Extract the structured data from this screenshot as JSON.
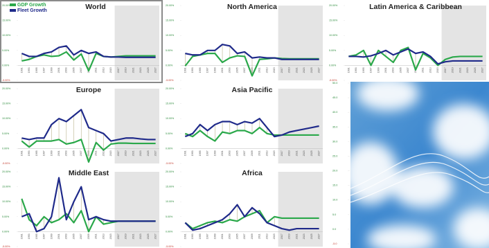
{
  "chart_data": [
    {
      "type": "line",
      "title": "World",
      "legend": "upper left",
      "xlim": [
        1990,
        2028
      ],
      "forecast_start": 2016,
      "shade_color": "#e4e4e4",
      "x": [
        1991,
        1993,
        1995,
        1997,
        1999,
        2001,
        2003,
        2005,
        2007,
        2009,
        2011,
        2013,
        2015,
        2017,
        2019,
        2021,
        2023,
        2025,
        2027
      ],
      "ylim": [
        -5,
        20
      ],
      "yticks": [
        {
          "value": 20,
          "label": "20.00%"
        },
        {
          "value": 15,
          "label": "15.00%"
        },
        {
          "value": 10,
          "label": "10.00%"
        },
        {
          "value": 5,
          "label": "5.00%"
        },
        {
          "value": 0,
          "label": "0.00%"
        },
        {
          "value": -5,
          "label": "-5.00%"
        }
      ],
      "series": [
        {
          "name": "GDP Growth",
          "color": "#2aa84a",
          "values": [
            1.5,
            2,
            3,
            3.5,
            3,
            3.2,
            4.5,
            1.8,
            3.8,
            -1.8,
            4,
            3,
            2.8,
            3,
            3.2,
            3.2,
            3.2,
            3.2,
            3.2
          ]
        },
        {
          "name": "Fleet Growth",
          "color": "#1f2a8a",
          "values": [
            4,
            3,
            3,
            4,
            4.5,
            6,
            6.5,
            3.5,
            5,
            4,
            4.5,
            3,
            2.8,
            2.8,
            2.7,
            2.7,
            2.7,
            2.7,
            2.7
          ]
        }
      ]
    },
    {
      "type": "line",
      "title": "North America",
      "xlim": [
        1990,
        2028
      ],
      "forecast_start": 2016,
      "shade_color": "#e4e4e4",
      "x": [
        1991,
        1993,
        1995,
        1997,
        1999,
        2001,
        2003,
        2005,
        2007,
        2009,
        2011,
        2013,
        2015,
        2017,
        2019,
        2021,
        2023,
        2025,
        2027
      ],
      "ylim": [
        -5,
        20
      ],
      "yticks": [
        {
          "value": 20,
          "label": "20.00%"
        },
        {
          "value": 15,
          "label": "15.00%"
        },
        {
          "value": 10,
          "label": "10.00%"
        },
        {
          "value": 5,
          "label": "5.00%"
        },
        {
          "value": 0,
          "label": "0.00%"
        },
        {
          "value": -5,
          "label": "-5.00%"
        }
      ],
      "series": [
        {
          "color": "#2aa84a",
          "values": [
            -0.2,
            3,
            3.5,
            4,
            4,
            1,
            2.5,
            3.2,
            3,
            -3.5,
            2,
            2.2,
            2.5,
            2.3,
            2.2,
            2.2,
            2.2,
            2.2,
            2.2
          ]
        },
        {
          "color": "#1f2a8a",
          "values": [
            4,
            3.5,
            3.5,
            5,
            5,
            7,
            6.5,
            4,
            4.5,
            2.5,
            2.8,
            2.5,
            2.5,
            2,
            2,
            2,
            2,
            2,
            2
          ]
        }
      ]
    },
    {
      "type": "line",
      "title": "Latin America & Caribbean",
      "xlim": [
        1990,
        2028
      ],
      "forecast_start": 2016,
      "shade_color": "#e4e4e4",
      "x": [
        1991,
        1993,
        1995,
        1997,
        1999,
        2001,
        2003,
        2005,
        2007,
        2009,
        2011,
        2013,
        2015,
        2017,
        2019,
        2021,
        2023,
        2025,
        2027
      ],
      "ylim": [
        -5,
        20
      ],
      "yticks": [
        {
          "value": 20,
          "label": "20.00%"
        },
        {
          "value": 15,
          "label": "15.00%"
        },
        {
          "value": 10,
          "label": "10.00%"
        },
        {
          "value": 5,
          "label": "5.00%"
        },
        {
          "value": 0,
          "label": "0.00%"
        },
        {
          "value": -5,
          "label": "-5.00%"
        }
      ],
      "series": [
        {
          "color": "#2aa84a",
          "values": [
            3,
            3.5,
            5,
            0,
            5,
            3,
            1,
            5,
            6,
            -1.5,
            4,
            2.5,
            0,
            2,
            2.8,
            3,
            3,
            3,
            3
          ]
        },
        {
          "color": "#1f2a8a",
          "values": [
            3,
            3,
            2.8,
            3.2,
            4,
            5,
            3.5,
            4.5,
            5.5,
            4,
            4.5,
            3,
            0.5,
            1.2,
            1.5,
            1.5,
            1.5,
            1.5,
            1.5
          ]
        }
      ]
    },
    {
      "type": "line",
      "title": "Europe",
      "xlim": [
        1990,
        2028
      ],
      "forecast_start": 2016,
      "shade_color": "#e4e4e4",
      "x": [
        1991,
        1993,
        1995,
        1997,
        1999,
        2001,
        2003,
        2005,
        2007,
        2009,
        2011,
        2013,
        2015,
        2017,
        2019,
        2021,
        2023,
        2025,
        2027
      ],
      "ylim": [
        -5,
        20
      ],
      "yticks": [
        {
          "value": 20,
          "label": "20.00%"
        },
        {
          "value": 15,
          "label": "15.00%"
        },
        {
          "value": 10,
          "label": "10.00%"
        },
        {
          "value": 5,
          "label": "5.00%"
        },
        {
          "value": 0,
          "label": "0.00%"
        },
        {
          "value": -5,
          "label": "-5.00%"
        }
      ],
      "series": [
        {
          "color": "#2aa84a",
          "values": [
            2.5,
            0.5,
            2.5,
            2.5,
            2.5,
            3,
            1.5,
            2,
            3,
            -4.5,
            2,
            -0.5,
            1.5,
            1.8,
            1.8,
            1.7,
            1.7,
            1.7,
            1.7
          ]
        },
        {
          "color": "#1f2a8a",
          "values": [
            3.5,
            3,
            3.5,
            3.5,
            8,
            10,
            9,
            11,
            13,
            7,
            6,
            5,
            2.5,
            3,
            3.5,
            3.5,
            3.2,
            3,
            3
          ]
        }
      ]
    },
    {
      "type": "line",
      "title": "Asia Pacific",
      "xlim": [
        1990,
        2028
      ],
      "forecast_start": 2016,
      "shade_color": "#e4e4e4",
      "x": [
        1991,
        1993,
        1995,
        1997,
        1999,
        2001,
        2003,
        2005,
        2007,
        2009,
        2011,
        2013,
        2015,
        2017,
        2019,
        2021,
        2023,
        2025,
        2027
      ],
      "ylim": [
        -5,
        20
      ],
      "yticks": [
        {
          "value": 20,
          "label": "20.00%"
        },
        {
          "value": 15,
          "label": "15.00%"
        },
        {
          "value": 10,
          "label": "10.00%"
        },
        {
          "value": 5,
          "label": "5.00%"
        },
        {
          "value": 0,
          "label": "0.00%"
        },
        {
          "value": -5,
          "label": "-5.00%"
        }
      ],
      "series": [
        {
          "color": "#2aa84a",
          "values": [
            5,
            4,
            6,
            4,
            2.5,
            5.5,
            5,
            6,
            6,
            5,
            7,
            5,
            4.5,
            4.5,
            4.5,
            4.5,
            4.5,
            4.5,
            4.5
          ]
        },
        {
          "color": "#1f2a8a",
          "values": [
            4,
            5,
            8,
            6,
            8,
            9,
            9,
            8,
            9,
            8.5,
            10,
            7,
            4,
            4.5,
            5.5,
            6,
            6.5,
            7,
            7.5
          ]
        }
      ]
    },
    {
      "type": "line",
      "title": "Middle East",
      "xlim": [
        1990,
        2028
      ],
      "forecast_start": 2016,
      "shade_color": "#e4e4e4",
      "x": [
        1991,
        1993,
        1995,
        1997,
        1999,
        2001,
        2003,
        2005,
        2007,
        2009,
        2011,
        2013,
        2015,
        2017,
        2019,
        2021,
        2023,
        2025,
        2027
      ],
      "ylim": [
        -5,
        20
      ],
      "yticks": [
        {
          "value": 20,
          "label": "20.00%"
        },
        {
          "value": 15,
          "label": "15.00%"
        },
        {
          "value": 10,
          "label": "10.00%"
        },
        {
          "value": 5,
          "label": "5.00%"
        },
        {
          "value": 0,
          "label": "0.00%"
        },
        {
          "value": -5,
          "label": "-5.00%"
        }
      ],
      "series": [
        {
          "color": "#2aa84a",
          "values": [
            11,
            4,
            2,
            5,
            3,
            4,
            6,
            3,
            7,
            0,
            5,
            2.5,
            3,
            3.5,
            3.5,
            3.5,
            3.5,
            3.5,
            3.5
          ]
        },
        {
          "color": "#1f2a8a",
          "values": [
            5,
            6,
            0,
            1,
            5,
            18,
            4,
            10,
            15,
            4,
            5,
            4,
            3.5,
            3.5,
            3.5,
            3.5,
            3.5,
            3.5,
            3.5
          ]
        }
      ]
    },
    {
      "type": "line",
      "title": "Africa",
      "xlim": [
        1990,
        2028
      ],
      "forecast_start": 2016,
      "shade_color": "#e4e4e4",
      "x": [
        1991,
        1993,
        1995,
        1997,
        1999,
        2001,
        2003,
        2005,
        2007,
        2009,
        2011,
        2013,
        2015,
        2017,
        2019,
        2021,
        2023,
        2025,
        2027
      ],
      "ylim": [
        -5,
        20
      ],
      "yticks": [
        {
          "value": 20,
          "label": "20.00%"
        },
        {
          "value": 15,
          "label": "15.00%"
        },
        {
          "value": 10,
          "label": "10.00%"
        },
        {
          "value": 5,
          "label": "5.00%"
        },
        {
          "value": 0,
          "label": "0.00%"
        },
        {
          "value": -5,
          "label": "-5.00%"
        }
      ],
      "series": [
        {
          "color": "#2aa84a",
          "values": [
            3,
            1,
            2,
            3,
            3.5,
            3,
            4,
            3.5,
            5,
            6,
            7,
            3,
            5,
            4.5,
            4.5,
            4.5,
            4.5,
            4.5,
            4.5
          ]
        },
        {
          "color": "#1f2a8a",
          "values": [
            3,
            0.5,
            1,
            2,
            3,
            4,
            6,
            9,
            5,
            8,
            6,
            3,
            2,
            1,
            0.5,
            1,
            1,
            1,
            1
          ]
        }
      ]
    },
    {
      "type": "image",
      "ylim": [
        -5,
        50
      ],
      "yticks": [
        {
          "value": 50,
          "label": "50.0"
        },
        {
          "value": 45,
          "label": "45.0"
        },
        {
          "value": 40,
          "label": "40.0"
        },
        {
          "value": 35,
          "label": "35.0"
        },
        {
          "value": 30,
          "label": "30.0"
        },
        {
          "value": 25,
          "label": "25.0"
        },
        {
          "value": 20,
          "label": "20.0"
        },
        {
          "value": 15,
          "label": "15.0"
        },
        {
          "value": 10,
          "label": "10.0"
        },
        {
          "value": 5,
          "label": "5.0"
        },
        {
          "value": 0,
          "label": "0.0"
        },
        {
          "value": -5,
          "label": "-5.0"
        }
      ]
    }
  ]
}
